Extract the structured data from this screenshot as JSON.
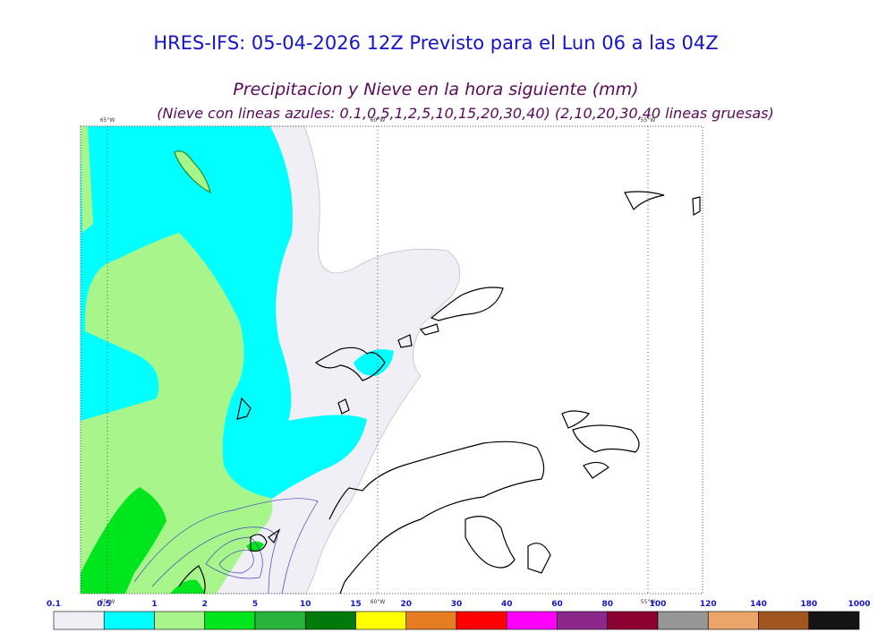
{
  "header": {
    "title": "HRES-IFS: 05-04-2026 12Z Previsto para el Lun 06 a las 04Z",
    "subtitle": "Precipitacion y Nieve en la hora siguiente (mm)",
    "note": "(Nieve con lineas azules: 0.1,0,5,1,2,5,10,15,20,30,40)  (2,10,20,30,40 lineas gruesas)"
  },
  "map": {
    "meridians": [
      "65°W",
      "60°W",
      "55°W"
    ]
  },
  "legend": {
    "labels": [
      "0.1",
      "0.5",
      "1",
      "2",
      "5",
      "10",
      "15",
      "20",
      "30",
      "40",
      "60",
      "80",
      "100",
      "120",
      "140",
      "180",
      "1000"
    ],
    "colors": [
      "#efeff5",
      "#00ffff",
      "#a8f58c",
      "#00e61e",
      "#28b43c",
      "#007a0a",
      "#ffff00",
      "#e67d23",
      "#ff0000",
      "#ff00ff",
      "#8c288c",
      "#8c0032",
      "#969696",
      "#eba569",
      "#a0561e",
      "#141414"
    ]
  }
}
